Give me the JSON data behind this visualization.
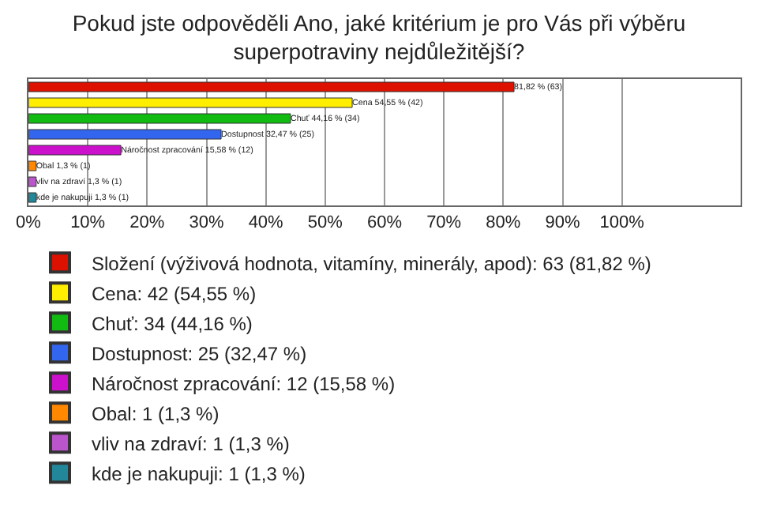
{
  "chart_data": {
    "type": "bar",
    "orientation": "horizontal",
    "title": "Pokud jste odpověděli Ano, jaké kritérium je pro Vás při výběru superpotraviny nejdůležitější?",
    "categories": [
      null,
      null,
      null,
      null,
      null,
      null,
      null,
      null
    ],
    "series": [
      {
        "name": "Složení (výživová hodnota, vitamíny, minerály, apod): 63 (81,82 %)",
        "color": "#dd1100",
        "values": [
          81.82,
          null,
          null,
          null,
          null,
          null,
          null,
          null
        ],
        "value_labels": [
          "81,82 % (63)",
          null,
          null,
          null,
          null,
          null,
          null,
          null
        ]
      },
      {
        "name": "Cena: 42 (54,55 %)",
        "color": "#ffee00",
        "values": [
          null,
          54.55,
          null,
          null,
          null,
          null,
          null,
          null
        ],
        "value_labels": [
          null,
          "Cena 54,55 % (42)",
          null,
          null,
          null,
          null,
          null,
          null
        ]
      },
      {
        "name": "Chuť: 34 (44,16 %)",
        "color": "#11bb11",
        "values": [
          null,
          null,
          44.16,
          null,
          null,
          null,
          null,
          null
        ],
        "value_labels": [
          null,
          null,
          "Chuť 44,16 % (34)",
          null,
          null,
          null,
          null,
          null
        ]
      },
      {
        "name": "Dostupnost: 25 (32,47 %)",
        "color": "#3366ee",
        "values": [
          null,
          null,
          null,
          32.47,
          null,
          null,
          null,
          null
        ],
        "value_labels": [
          null,
          null,
          null,
          "Dostupnost 32,47 % (25)",
          null,
          null,
          null,
          null
        ]
      },
      {
        "name": "Náročnost zpracování: 12 (15,58 %)",
        "color": "#cc11cc",
        "values": [
          null,
          null,
          null,
          null,
          15.58,
          null,
          null,
          null
        ],
        "value_labels": [
          null,
          null,
          null,
          null,
          "Náročnost zpracování 15,58 % (12)",
          null,
          null,
          null
        ]
      },
      {
        "name": "Obal: 1 (1,3 %)",
        "color": "#ff8800",
        "values": [
          null,
          null,
          null,
          null,
          null,
          1.3,
          null,
          null
        ],
        "value_labels": [
          null,
          null,
          null,
          null,
          null,
          "Obal 1,3 % (1)",
          null,
          null
        ]
      },
      {
        "name": "vliv na zdraví: 1 (1,3 %)",
        "color": "#bb55cc",
        "values": [
          null,
          null,
          null,
          null,
          null,
          null,
          1.3,
          null
        ],
        "value_labels": [
          null,
          null,
          null,
          null,
          null,
          null,
          "vliv na zdraví 1,3 % (1)",
          null
        ]
      },
      {
        "name": "kde je nakupuji: 1 (1,3 %)",
        "color": "#228899",
        "values": [
          null,
          null,
          null,
          null,
          null,
          null,
          null,
          1.3
        ],
        "value_labels": [
          null,
          null,
          null,
          null,
          null,
          null,
          null,
          "kde je nakupuji 1,3 % (1)"
        ]
      }
    ],
    "xlim": [
      0,
      120
    ],
    "xticks": [
      {
        "value": 0,
        "label": "0%"
      },
      {
        "value": 10,
        "label": "10%"
      },
      {
        "value": 20,
        "label": "20%"
      },
      {
        "value": 30,
        "label": "30%"
      },
      {
        "value": 40,
        "label": "40%"
      },
      {
        "value": 50,
        "label": "50%"
      },
      {
        "value": 60,
        "label": "60%"
      },
      {
        "value": 70,
        "label": "70%"
      },
      {
        "value": 80,
        "label": "80%"
      },
      {
        "value": 90,
        "label": "90%"
      },
      {
        "value": 100,
        "label": "100%"
      }
    ],
    "grid": "x",
    "legend": "bottom",
    "tick_labels": "x"
  }
}
